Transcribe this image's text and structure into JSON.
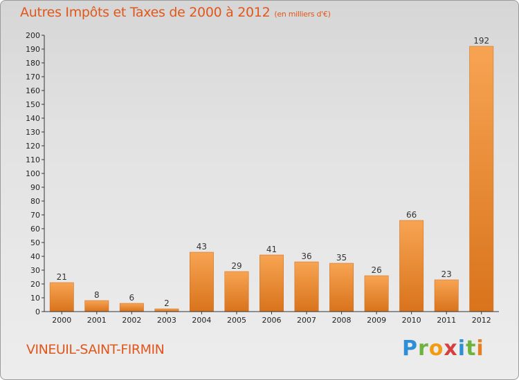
{
  "header": {
    "title": "Autres Impôts et Taxes de 2000 à 2012",
    "unit": "(en milliers d'€)"
  },
  "footer": {
    "city": "VINEUIL-SAINT-FIRMIN",
    "logo_letters": [
      "P",
      "r",
      "o",
      "x",
      "i",
      "t",
      "i"
    ]
  },
  "colors": {
    "bar_light": "#f7a452",
    "bar_dark": "#d9731c",
    "title": "#e0571b"
  },
  "chart_data": {
    "type": "bar",
    "title": "Autres Impôts et Taxes de 2000 à 2012",
    "categories": [
      "2000",
      "2001",
      "2002",
      "2003",
      "2004",
      "2005",
      "2006",
      "2007",
      "2008",
      "2009",
      "2010",
      "2011",
      "2012"
    ],
    "values": [
      21,
      8,
      6,
      2,
      43,
      29,
      41,
      36,
      35,
      26,
      66,
      23,
      192
    ],
    "ylim": [
      0,
      200
    ],
    "yticks": [
      0,
      10,
      20,
      30,
      40,
      50,
      60,
      70,
      80,
      90,
      100,
      110,
      120,
      130,
      140,
      150,
      160,
      170,
      180,
      190,
      200
    ],
    "grid": false,
    "data_labels": true
  }
}
